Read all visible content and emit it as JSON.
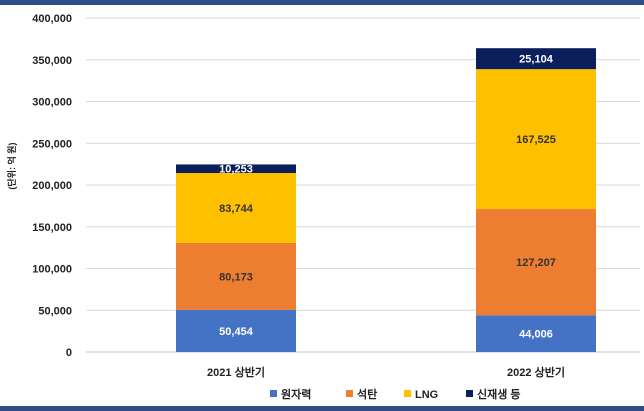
{
  "chart_data": {
    "type": "bar",
    "stacked": true,
    "title": "",
    "ylabel": "(단위: 억 원)",
    "xlabel": "",
    "ylim": [
      0,
      400000
    ],
    "yticks": [
      0,
      50000,
      100000,
      150000,
      200000,
      250000,
      300000,
      350000,
      400000
    ],
    "ytick_labels": [
      "0",
      "50,000",
      "100,000",
      "150,000",
      "200,000",
      "250,000",
      "300,000",
      "350,000",
      "400,000"
    ],
    "categories": [
      "2021 상반기",
      "2022 상반기"
    ],
    "series": [
      {
        "name": "원자력",
        "color": "#4472c4",
        "label_color": "#ffffff",
        "values": [
          50454,
          44006
        ],
        "labels": [
          "50,454",
          "44,006"
        ]
      },
      {
        "name": "석탄",
        "color": "#ed7d31",
        "label_color": "#333333",
        "values": [
          80173,
          127207
        ],
        "labels": [
          "80,173",
          "127,207"
        ]
      },
      {
        "name": "LNG",
        "color": "#ffc000",
        "label_color": "#333333",
        "values": [
          83744,
          167525
        ],
        "labels": [
          "83,744",
          "167,525"
        ]
      },
      {
        "name": "신재생 등",
        "color": "#0b1f5c",
        "label_color": "#ffffff",
        "values": [
          10253,
          25104
        ],
        "labels": [
          "10,253",
          "25,104"
        ]
      }
    ],
    "legend_position": "bottom",
    "grid": true
  }
}
